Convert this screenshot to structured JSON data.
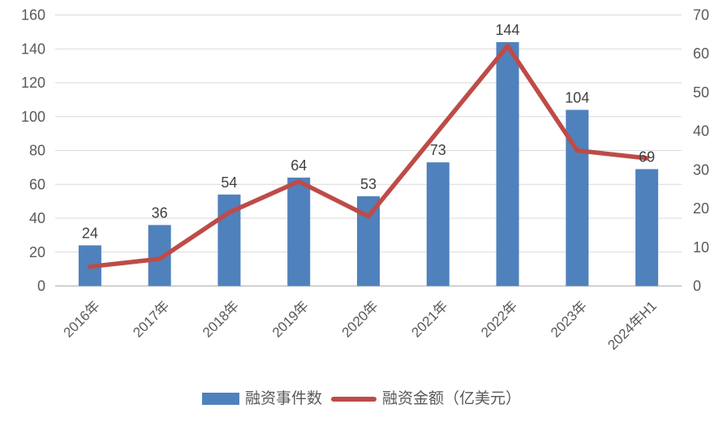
{
  "chart_data": {
    "type": "bar",
    "subtype": "combo-bar-line-dual-axis",
    "title": "",
    "categories": [
      "2016年",
      "2017年",
      "2018年",
      "2019年",
      "2020年",
      "2021年",
      "2022年",
      "2023年",
      "2024年H1"
    ],
    "series": [
      {
        "name": "融资事件数",
        "type": "bar",
        "axis": "left",
        "color": "#4F81BD",
        "values": [
          24,
          36,
          54,
          64,
          53,
          73,
          144,
          104,
          69
        ],
        "data_labels": [
          "24",
          "36",
          "54",
          "64",
          "53",
          "73",
          "144",
          "104",
          "69"
        ]
      },
      {
        "name": "融资金额（亿美元）",
        "type": "line",
        "axis": "right",
        "color": "#BE4B48",
        "values": [
          5,
          7,
          19,
          27,
          18,
          40,
          62,
          35,
          33
        ],
        "data_labels": []
      }
    ],
    "left_axis": {
      "min": 0,
      "max": 160,
      "step": 20,
      "ticks": [
        "0",
        "20",
        "40",
        "60",
        "80",
        "100",
        "120",
        "140",
        "160"
      ]
    },
    "right_axis": {
      "min": 0,
      "max": 70,
      "step": 10,
      "ticks": [
        "0",
        "10",
        "20",
        "30",
        "40",
        "50",
        "60",
        "70"
      ]
    },
    "grid": true,
    "legend_position": "bottom",
    "colors": {
      "bar": "#4F81BD",
      "line": "#BE4B48",
      "gridline": "#D9D9D9",
      "baseline": "#BFBFBF",
      "axis_text": "#595959",
      "value_label": "#404040",
      "background": "#FFFFFF"
    }
  }
}
